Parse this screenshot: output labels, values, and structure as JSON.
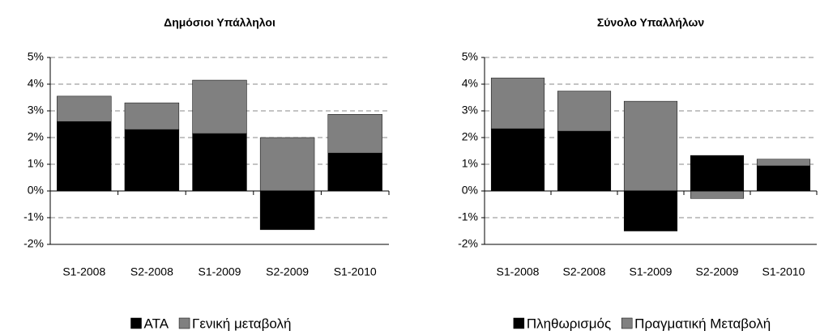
{
  "chart_data": [
    {
      "type": "bar",
      "stacked": true,
      "title": "Δημόσιοι Υπάλληλοι",
      "categories": [
        "S1-2008",
        "S2-2008",
        "S1-2009",
        "S2-2009",
        "S1-2010"
      ],
      "series": [
        {
          "name": "ATA",
          "color": "#000000",
          "values": [
            2.6,
            2.3,
            2.15,
            -1.45,
            1.42
          ]
        },
        {
          "name": "Γενική μεταβολή",
          "color": "#808080",
          "values": [
            0.95,
            1.0,
            2.0,
            2.0,
            1.45
          ]
        }
      ],
      "ylim": [
        -2,
        5
      ],
      "yticks": [
        {
          "value": -2,
          "label": "-2%"
        },
        {
          "value": -1,
          "label": "-1%"
        },
        {
          "value": 0,
          "label": "0%"
        },
        {
          "value": 1,
          "label": "1%"
        },
        {
          "value": 2,
          "label": "2%"
        },
        {
          "value": 3,
          "label": "3%"
        },
        {
          "value": 4,
          "label": "4%"
        },
        {
          "value": 5,
          "label": "5%"
        }
      ],
      "grid": true,
      "legend": "bottom"
    },
    {
      "type": "bar",
      "stacked": true,
      "title": "Σύνολο  Υπαλλήλων",
      "categories": [
        "S1-2008",
        "S2-2008",
        "S1-2009",
        "S2-2009",
        "S1-2010"
      ],
      "series": [
        {
          "name": "Πληθωρισμός",
          "color": "#000000",
          "values": [
            2.33,
            2.24,
            -1.5,
            1.33,
            0.94
          ]
        },
        {
          "name": "Πραγματική Μεταβολή",
          "color": "#808080",
          "values": [
            1.9,
            1.5,
            3.36,
            -0.28,
            0.25
          ]
        }
      ],
      "ylim": [
        -2,
        5
      ],
      "yticks": [
        {
          "value": -2,
          "label": "-2%"
        },
        {
          "value": -1,
          "label": "-1%"
        },
        {
          "value": 0,
          "label": "0%"
        },
        {
          "value": 1,
          "label": "1%"
        },
        {
          "value": 2,
          "label": "2%"
        },
        {
          "value": 3,
          "label": "3%"
        },
        {
          "value": 4,
          "label": "4%"
        },
        {
          "value": 5,
          "label": "5%"
        }
      ],
      "grid": true,
      "legend": "bottom"
    }
  ]
}
